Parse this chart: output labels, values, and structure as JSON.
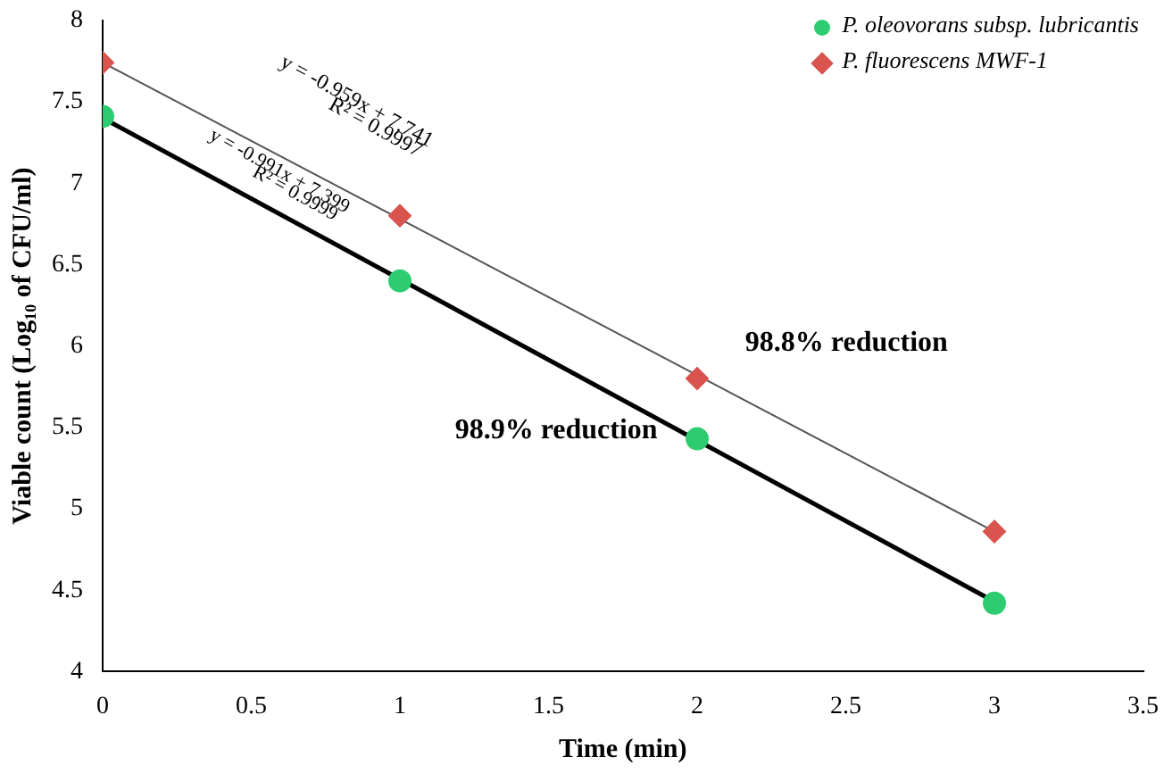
{
  "chart_data": {
    "type": "scatter",
    "xlabel": "Time (min)",
    "ylabel": "Viable count (Log₁₀ of CFU/ml)",
    "xlim": [
      0,
      3.5
    ],
    "xticks": [
      0,
      0.5,
      1,
      1.5,
      2,
      2.5,
      3,
      3.5
    ],
    "ylim": [
      4,
      8
    ],
    "yticks": [
      4,
      4.5,
      5,
      5.5,
      6,
      6.5,
      7,
      7.5,
      8
    ],
    "grid": false,
    "legend": "top right",
    "series": [
      {
        "name": "P. oleovorans subsp. lubricantis",
        "type": "scatter",
        "marker": "circle",
        "color": "#2ecc71",
        "x": [
          0,
          1,
          2,
          3
        ],
        "values": [
          7.41,
          6.4,
          5.43,
          4.42
        ]
      },
      {
        "name": "P. fluorescens MWF-1",
        "type": "scatter",
        "marker": "diamond",
        "color": "#d9534f",
        "x": [
          0,
          1,
          2,
          3
        ],
        "values": [
          7.74,
          6.8,
          5.8,
          4.86
        ]
      },
      {
        "type": "line",
        "marker": "none",
        "color": "#000000",
        "x": [
          0,
          3
        ],
        "values": [
          7.4,
          4.43
        ]
      },
      {
        "type": "line",
        "marker": "none",
        "color": "#555555",
        "x": [
          0,
          3
        ],
        "values": [
          7.74,
          4.86
        ]
      }
    ],
    "annotations": [
      "y = -0.959x + 7.741",
      "R² = 0.9997",
      "y = -0.991x + 7.399",
      "R² = 0.9999",
      "98.8% reduction",
      "98.9% reduction"
    ]
  }
}
